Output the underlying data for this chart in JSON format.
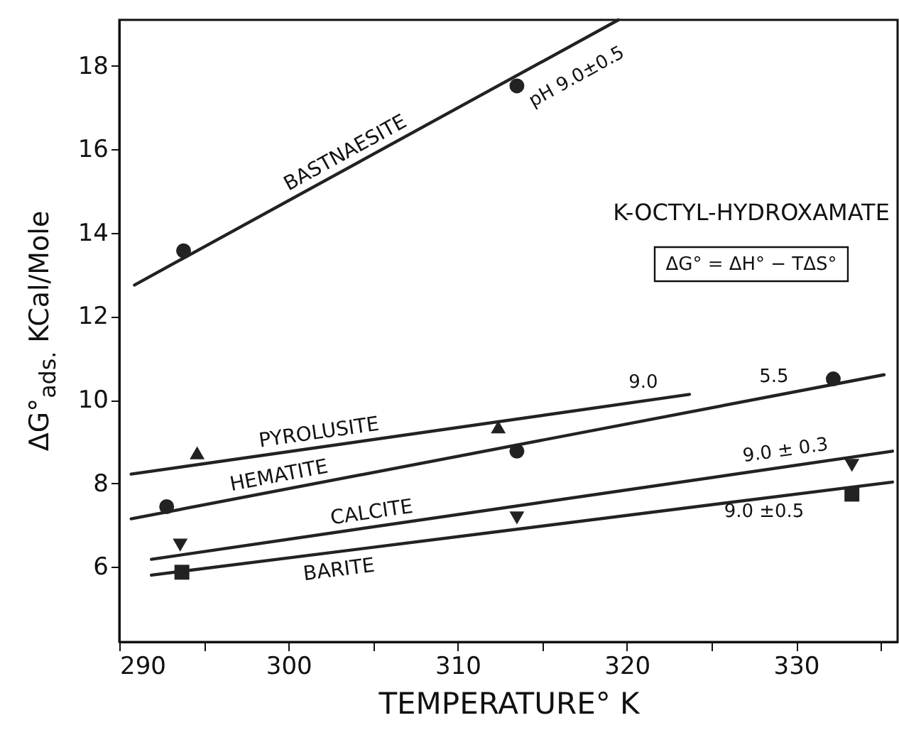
{
  "chart_data": {
    "type": "line",
    "title": "K-OCTYL-HYDROXAMATE",
    "xlabel": "TEMPERATURE° K",
    "ylabel": "ΔG°$_{ads.}$ KCal/Mole",
    "xlim": [
      290,
      336
    ],
    "xticks": [
      290,
      {
        "value": 295,
        "label": null
      },
      300,
      {
        "value": 305,
        "label": null
      },
      310,
      {
        "value": 315,
        "label": null
      },
      320,
      {
        "value": 325,
        "label": null
      },
      330,
      {
        "value": 335,
        "label": null
      }
    ],
    "ylim": [
      4.2,
      19.1
    ],
    "yticks": [
      6,
      8,
      10,
      12,
      14,
      16,
      18
    ],
    "grid": false,
    "series": [
      {
        "type": "line",
        "name": "BASTNAESITE",
        "color": "#222222",
        "x": [
          290.9,
          319.5
        ],
        "values": [
          12.75,
          19.1
        ]
      },
      {
        "type": "line",
        "name": "PYROLUSITE",
        "color": "#222222",
        "x": [
          290.7,
          323.7
        ],
        "values": [
          8.22,
          10.13
        ]
      },
      {
        "type": "line",
        "name": "HEMATITE",
        "color": "#222222",
        "x": [
          290.7,
          335.2
        ],
        "values": [
          7.15,
          10.6
        ]
      },
      {
        "type": "line",
        "name": "CALCITE",
        "color": "#222222",
        "x": [
          291.9,
          335.7
        ],
        "values": [
          6.18,
          8.77
        ]
      },
      {
        "type": "line",
        "name": "BARITE",
        "color": "#222222",
        "x": [
          291.9,
          335.7
        ],
        "values": [
          5.8,
          8.03
        ]
      },
      {
        "type": "scatter",
        "color": "#222222",
        "marker": "circle",
        "x": [
          293.8,
          313.5
        ],
        "values": [
          13.57,
          17.52
        ]
      },
      {
        "type": "scatter",
        "color": "#222222",
        "marker": "triangle",
        "x": [
          294.6,
          312.4
        ],
        "values": [
          8.73,
          9.35
        ]
      },
      {
        "type": "scatter",
        "color": "#222222",
        "marker": "circle",
        "x": [
          292.8,
          313.5,
          332.2
        ],
        "values": [
          7.44,
          8.77,
          10.5
        ]
      },
      {
        "type": "scatter",
        "color": "#222222",
        "marker": "triangle-down",
        "x": [
          293.6,
          313.5,
          333.3
        ],
        "values": [
          6.52,
          7.17,
          8.43
        ]
      },
      {
        "type": "scatter",
        "color": "#222222",
        "marker": "square",
        "x": [
          293.7,
          333.3
        ],
        "values": [
          5.87,
          7.74
        ]
      }
    ],
    "annotations": [
      "ΔG° = ΔH° − TΔS°",
      "pH 9.0±0.5",
      "9.0",
      "5.5",
      "9.0 ± 0.3",
      "9.0 ±0.5"
    ]
  }
}
